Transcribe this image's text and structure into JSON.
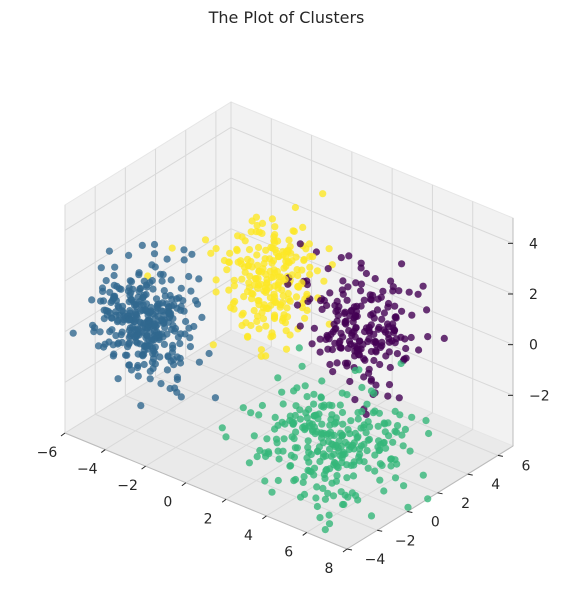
{
  "chart_data": {
    "type": "scatter",
    "projection": "3d",
    "title": "The Plot of Clusters",
    "xlabel": "",
    "ylabel": "",
    "zlabel": "",
    "grid": true,
    "xlim": [
      -6,
      8
    ],
    "ylim": [
      -4,
      7
    ],
    "zlim": [
      -4,
      5
    ],
    "x_ticks": [
      -6,
      -4,
      -2,
      0,
      2,
      4,
      6,
      8
    ],
    "y_ticks": [
      -4,
      -2,
      0,
      2,
      4,
      6
    ],
    "z_ticks": [
      -2,
      0,
      2,
      4
    ],
    "x_tick_labels": [
      "−6",
      "−4",
      "−2",
      "0",
      "2",
      "4",
      "6",
      "8"
    ],
    "y_tick_labels": [
      "−4",
      "−2",
      "0",
      "2",
      "4",
      "6"
    ],
    "z_tick_labels": [
      "−2",
      "0",
      "2",
      "4"
    ],
    "colormap": "viridis",
    "series": [
      {
        "color": "#440154",
        "center": [
          4.0,
          2.5,
          1.0
        ],
        "spread": [
          1.2,
          1.2,
          1.0
        ],
        "count": 210
      },
      {
        "color": "#31688e",
        "center": [
          -3.0,
          -2.5,
          0.8
        ],
        "spread": [
          1.0,
          1.0,
          1.0
        ],
        "count": 330
      },
      {
        "color": "#35b779",
        "center": [
          5.0,
          -1.0,
          -1.8
        ],
        "spread": [
          1.4,
          1.4,
          1.0
        ],
        "count": 280
      },
      {
        "color": "#fde725",
        "center": [
          0.0,
          1.5,
          2.0
        ],
        "spread": [
          1.0,
          1.0,
          1.0
        ],
        "count": 220
      }
    ]
  }
}
